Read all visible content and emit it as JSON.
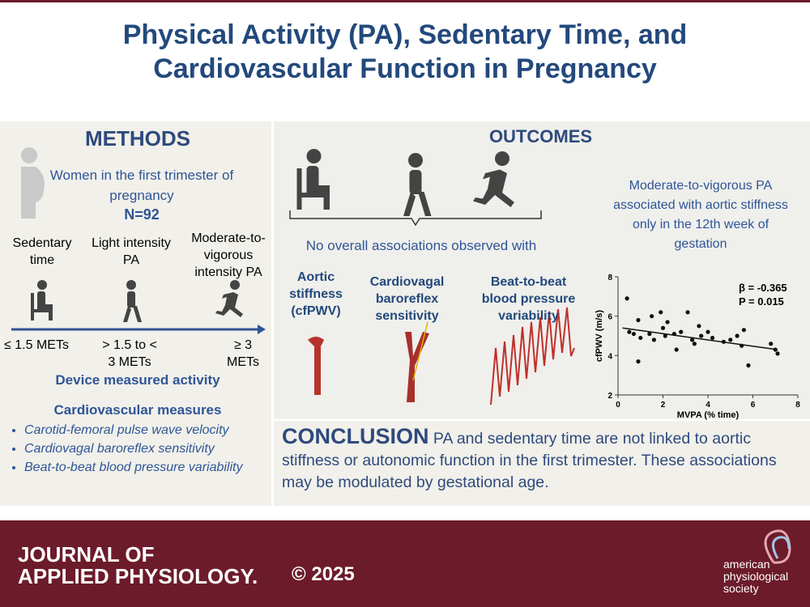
{
  "header": {
    "title": "Physical Activity (PA), Sedentary Time, and Cardiovascular Function in Pregnancy"
  },
  "methods": {
    "heading": "METHODS",
    "population": "Women in the first trimester of pregnancy",
    "n": "N=92",
    "intensities": [
      {
        "label": "Sedentary time",
        "mets": "≤ 1.5 METs"
      },
      {
        "label": "Light intensity PA",
        "mets": "> 1.5 to < 3 METs"
      },
      {
        "label": "Moderate-to-vigorous intensity PA",
        "mets": "≥ 3 METs"
      }
    ],
    "device": "Device measured activity",
    "cv_heading": "Cardiovascular measures",
    "cv_measures": [
      "Carotid-femoral pulse wave velocity",
      "Cardiovagal baroreflex sensitivity",
      "Beat-to-beat blood pressure variability"
    ]
  },
  "outcomes": {
    "heading": "OUTCOMES",
    "no_association": "No overall associations observed with",
    "measures": [
      "Aortic stiffness (cfPWV)",
      "Cardiovagal baroreflex sensitivity",
      "Beat-to-beat blood pressure variability"
    ],
    "finding": "Moderate-to-vigorous PA associated with aortic stiffness only in the 12th week of gestation"
  },
  "scatter": {
    "type": "scatter",
    "x_label": "MVPA (% time)",
    "y_label": "cfPWV (m/s)",
    "annotations": [
      "β = -0.365",
      "P =  0.015"
    ],
    "x": [
      0.4,
      0.5,
      0.7,
      0.9,
      1.0,
      0.9,
      1.4,
      1.5,
      1.6,
      1.9,
      2.0,
      2.1,
      2.2,
      2.5,
      2.6,
      2.8,
      3.1,
      3.3,
      3.4,
      3.6,
      3.7,
      4.0,
      4.2,
      4.7,
      5.0,
      5.3,
      5.5,
      5.6,
      5.8,
      6.8,
      7.0,
      7.1
    ],
    "y": [
      6.9,
      5.2,
      5.1,
      5.8,
      4.9,
      3.7,
      5.1,
      6.0,
      4.8,
      6.2,
      5.4,
      5.0,
      5.7,
      5.1,
      4.3,
      5.2,
      6.2,
      4.8,
      4.6,
      5.5,
      5.0,
      5.2,
      4.9,
      4.7,
      4.8,
      5.0,
      4.5,
      5.3,
      3.5,
      4.6,
      4.3,
      4.1
    ],
    "fit_line": {
      "x": [
        0.2,
        7.1
      ],
      "y": [
        5.4,
        4.3
      ]
    },
    "xlim": [
      0,
      8
    ],
    "ylim": [
      2,
      8
    ],
    "xticks": [
      0,
      2,
      4,
      6,
      8
    ],
    "yticks": [
      2,
      4,
      6,
      8
    ],
    "color": "#111111"
  },
  "conclusion": {
    "label": "CONCLUSION",
    "text": "PA and sedentary time are not linked to aortic stiffness or autonomic function in the first trimester. These associations may be modulated by gestational age."
  },
  "footer": {
    "journal": [
      "JOURNAL OF",
      "APPLIED PHYSIOLOGY."
    ],
    "copyright": "© 2025",
    "society": [
      "american",
      "physiological",
      "society"
    ]
  }
}
